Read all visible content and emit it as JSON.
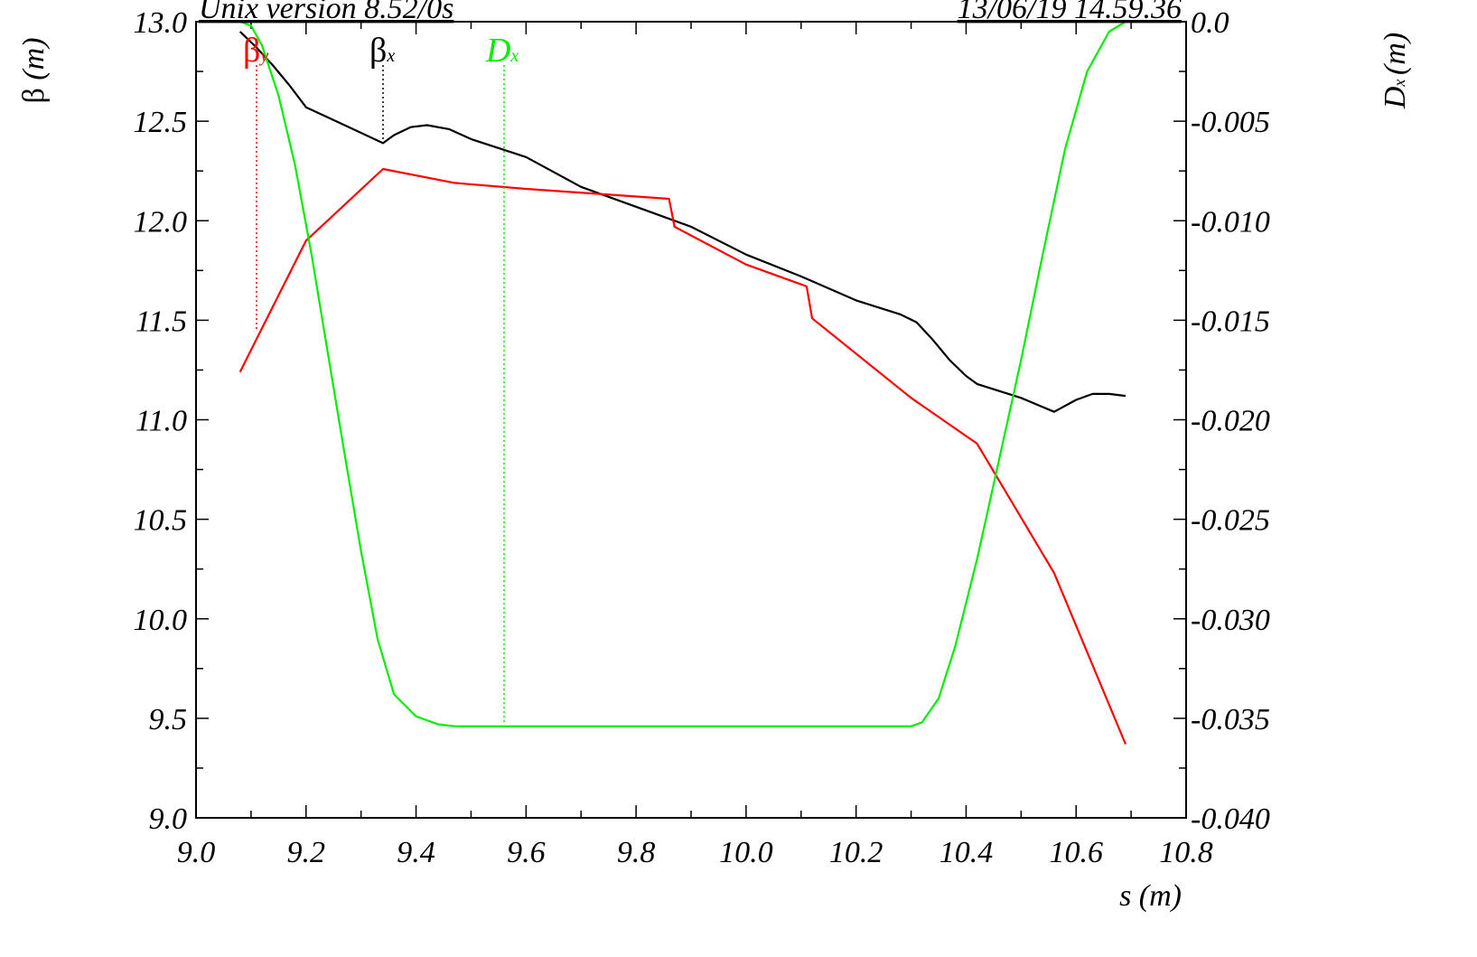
{
  "chart_data": {
    "type": "line",
    "header_left": "Unix version 8.52/0s",
    "header_right": "13/06/19  14.59.36",
    "xlabel": "s (m)",
    "ylabel_left": {
      "symbol": "β",
      "unit": "(m)"
    },
    "ylabel_right": {
      "symbol": "D",
      "subscript": "x",
      "unit": "(m)"
    },
    "xlim": [
      9.0,
      10.8
    ],
    "ylim_left": [
      9.0,
      13.0
    ],
    "ylim_right": [
      -0.04,
      0.0
    ],
    "x_ticks": [
      "9.0",
      "9.2",
      "9.4",
      "9.6",
      "9.8",
      "10.0",
      "10.2",
      "10.4",
      "10.6",
      "10.8"
    ],
    "y_left_ticks": [
      "13.0",
      "12.5",
      "12.0",
      "11.5",
      "11.0",
      "10.5",
      "10.0",
      "9.5",
      "9.0"
    ],
    "y_right_ticks": [
      "0.0",
      "-0.005",
      "-0.010",
      "-0.015",
      "-0.020",
      "-0.025",
      "-0.030",
      "-0.035",
      "-0.040"
    ],
    "series": [
      {
        "name": "βx",
        "symbol": "β",
        "subscript": "x",
        "axis": "left",
        "color": "#000000",
        "marker_s": 9.34,
        "x": [
          9.08,
          9.11,
          9.14,
          9.17,
          9.2,
          9.27,
          9.34,
          9.36,
          9.39,
          9.42,
          9.46,
          9.5,
          9.6,
          9.7,
          9.8,
          9.9,
          10.0,
          10.1,
          10.2,
          10.28,
          10.31,
          10.34,
          10.37,
          10.4,
          10.42,
          10.5,
          10.56,
          10.6,
          10.63,
          10.66,
          10.69
        ],
        "y": [
          12.95,
          12.87,
          12.78,
          12.68,
          12.57,
          12.48,
          12.39,
          12.43,
          12.47,
          12.48,
          12.46,
          12.41,
          12.32,
          12.17,
          12.07,
          11.97,
          11.83,
          11.72,
          11.6,
          11.53,
          11.49,
          11.4,
          11.3,
          11.22,
          11.18,
          11.11,
          11.04,
          11.1,
          11.13,
          11.13,
          11.12
        ]
      },
      {
        "name": "βy",
        "symbol": "β",
        "subscript": "y",
        "axis": "left",
        "color": "#ff0000",
        "marker_s": 9.11,
        "x": [
          9.08,
          9.2,
          9.34,
          9.47,
          9.6,
          9.86,
          9.87,
          10.0,
          10.11,
          10.12,
          10.3,
          10.42,
          10.56,
          10.69
        ],
        "y": [
          11.24,
          11.9,
          12.26,
          12.19,
          12.16,
          12.11,
          11.97,
          11.78,
          11.67,
          11.51,
          11.11,
          10.88,
          10.23,
          9.37
        ]
      },
      {
        "name": "Dx",
        "symbol": "D",
        "subscript": "x",
        "axis": "right",
        "color": "#00ee00",
        "marker_s": 9.56,
        "x": [
          9.08,
          9.1,
          9.12,
          9.15,
          9.18,
          9.21,
          9.24,
          9.27,
          9.3,
          9.33,
          9.36,
          9.4,
          9.44,
          9.47,
          9.5,
          10.0,
          10.3,
          10.32,
          10.35,
          10.38,
          10.42,
          10.46,
          10.5,
          10.54,
          10.58,
          10.62,
          10.66,
          10.69
        ],
        "y": [
          0.0,
          -0.0002,
          -0.0012,
          -0.0037,
          -0.0072,
          -0.0117,
          -0.0167,
          -0.0217,
          -0.0266,
          -0.031,
          -0.0338,
          -0.0349,
          -0.0353,
          -0.0354,
          -0.0354,
          -0.0354,
          -0.0354,
          -0.0352,
          -0.034,
          -0.0314,
          -0.027,
          -0.022,
          -0.017,
          -0.0116,
          -0.0064,
          -0.0025,
          -0.0005,
          0.0
        ]
      }
    ],
    "grid": false,
    "legend": "inline labels above the plot near top-left"
  }
}
